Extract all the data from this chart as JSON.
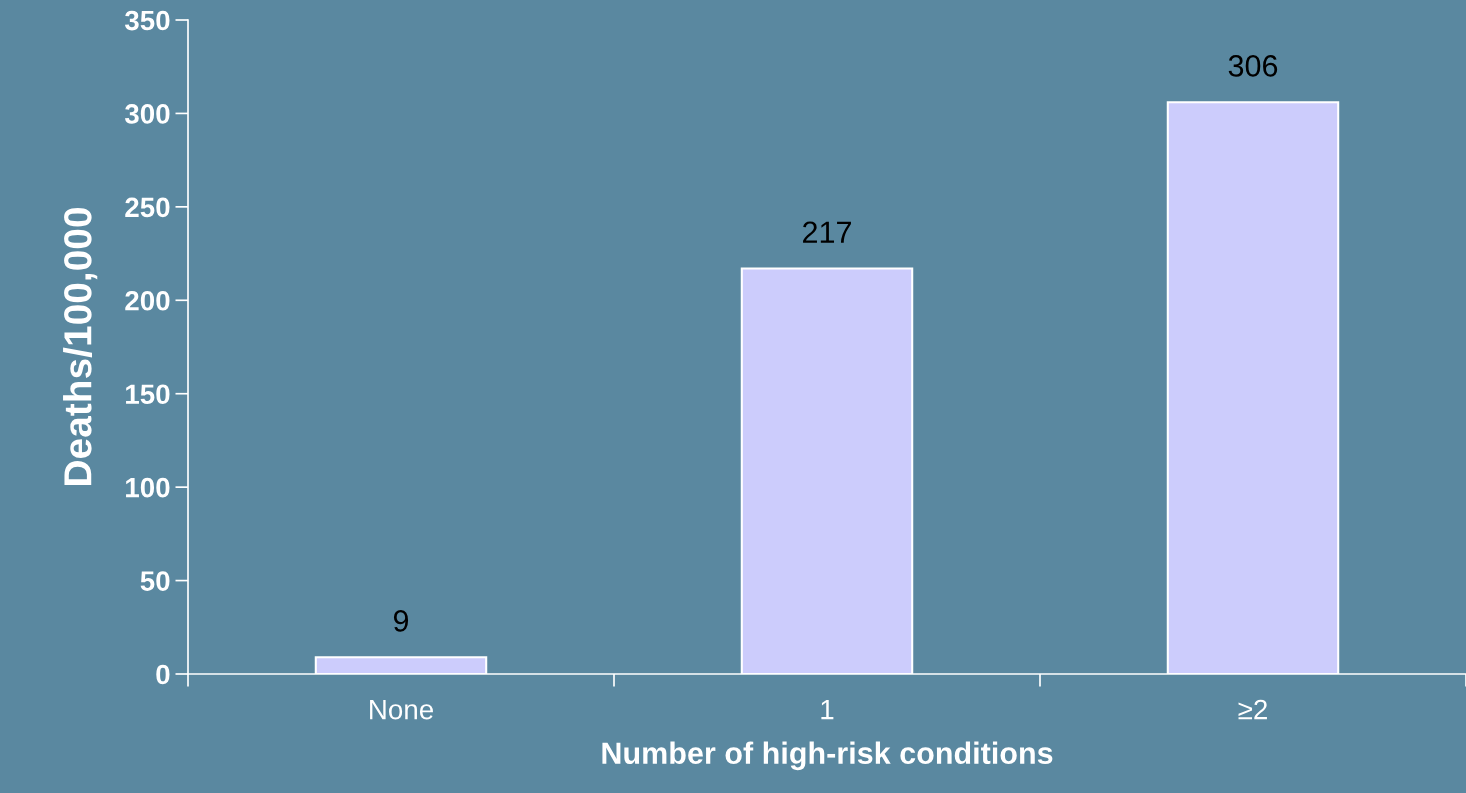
{
  "chart_data": {
    "type": "bar",
    "xlabel": "Number of high-risk conditions",
    "ylabel": "Deaths/100,000",
    "categories": [
      "None",
      "1",
      "≥2"
    ],
    "values": [
      9,
      217,
      306
    ],
    "color": "#ccccfc",
    "data_labels": true,
    "ylim": [
      0,
      350
    ],
    "yticks": [
      0,
      50,
      100,
      150,
      200,
      250,
      300,
      350
    ],
    "grid": false,
    "legend": false
  }
}
